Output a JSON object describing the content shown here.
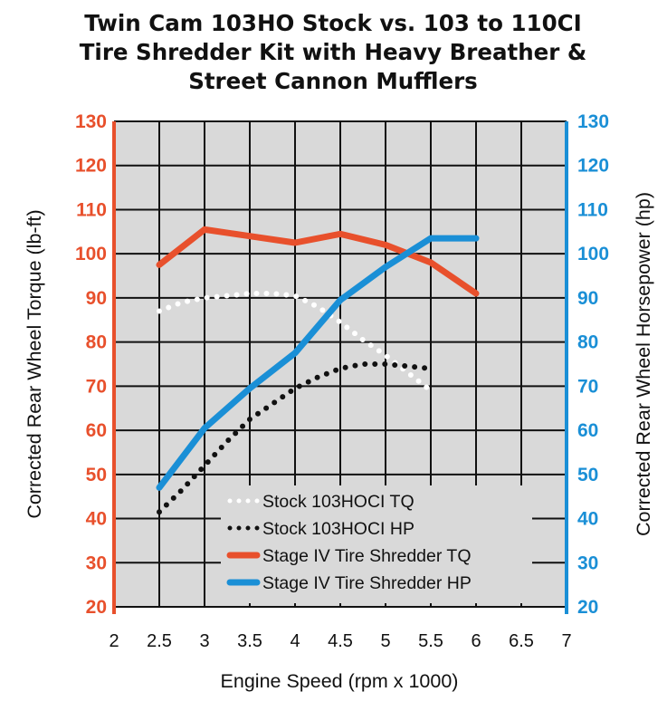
{
  "chart_data": {
    "type": "line",
    "title_lines": [
      "Twin Cam 103HO Stock vs. 103 to 110CI",
      "Tire Shredder Kit with Heavy Breather &",
      "Street Cannon Mufflers"
    ],
    "xlabel": "Engine Speed (rpm x 1000)",
    "ylabel_left": "Corrected Rear Wheel Torque (lb-ft)",
    "ylabel_right": "Corrected Rear Wheel Horsepower (hp)",
    "xlim": [
      2,
      7
    ],
    "ylim": [
      20,
      130
    ],
    "x_ticks": [
      "2",
      "2.5",
      "3",
      "3.5",
      "4",
      "4.5",
      "5",
      "5.5",
      "6",
      "6.5",
      "7"
    ],
    "y_ticks": [
      "130",
      "120",
      "110",
      "100",
      "90",
      "80",
      "70",
      "60",
      "50",
      "40",
      "30",
      "20"
    ],
    "grid": true,
    "legend_position": "lower-right",
    "colors": {
      "left_axis": "#e8502c",
      "right_axis": "#1a8fd6",
      "plot_bg": "#d9d9d9",
      "grid": "#111111"
    },
    "series": [
      {
        "name": "Stock 103HOCI TQ",
        "style": "dotted",
        "color": "#ffffff",
        "x": [
          2.5,
          2.75,
          3,
          3.25,
          3.5,
          3.75,
          4,
          4.25,
          4.5,
          4.75,
          5,
          5.25,
          5.5
        ],
        "y": [
          87,
          89,
          90,
          90.5,
          91,
          91,
          90.5,
          88,
          84.5,
          80.5,
          77,
          73,
          69
        ]
      },
      {
        "name": "Stock 103HOCI HP",
        "style": "dotted",
        "color": "#111111",
        "x": [
          2.5,
          2.75,
          3,
          3.25,
          3.5,
          3.75,
          4,
          4.25,
          4.5,
          4.75,
          5,
          5.25,
          5.5
        ],
        "y": [
          41.5,
          46.5,
          52,
          57.5,
          62.5,
          66,
          69.5,
          72,
          74,
          75,
          75,
          74.5,
          74
        ]
      },
      {
        "name": "Stage IV Tire Shredder TQ",
        "style": "solid",
        "color": "#e8502c",
        "x": [
          2.5,
          3,
          3.5,
          4,
          4.5,
          5,
          5.5,
          6
        ],
        "y": [
          97.5,
          105.5,
          104,
          102.5,
          104.5,
          102,
          98,
          91
        ]
      },
      {
        "name": "Stage IV Tire Shredder HP",
        "style": "solid",
        "color": "#1a8fd6",
        "x": [
          2.5,
          3,
          3.5,
          4,
          4.5,
          5,
          5.5,
          6
        ],
        "y": [
          47,
          60.5,
          69.5,
          77.5,
          89.5,
          97,
          103.5,
          103.5
        ]
      }
    ]
  }
}
